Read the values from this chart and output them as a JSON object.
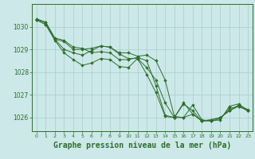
{
  "background_color": "#cce8e8",
  "grid_color": "#aacccc",
  "line_color": "#2d6e2d",
  "marker_color": "#2d6e2d",
  "xlabel": "Graphe pression niveau de la mer (hPa)",
  "xlabel_fontsize": 7,
  "ylabel_ticks": [
    1026,
    1027,
    1028,
    1029,
    1030
  ],
  "xtick_labels": [
    "0",
    "1",
    "2",
    "3",
    "4",
    "5",
    "6",
    "7",
    "8",
    "9",
    "10",
    "11",
    "12",
    "13",
    "14",
    "15",
    "16",
    "17",
    "18",
    "19",
    "20",
    "21",
    "22",
    "23"
  ],
  "ylim": [
    1025.4,
    1031.0
  ],
  "xlim": [
    -0.5,
    23.5
  ],
  "series": [
    [
      1030.3,
      1030.2,
      1029.45,
      1029.0,
      1028.85,
      1028.75,
      1028.95,
      1029.15,
      1029.1,
      1028.85,
      1028.85,
      1028.7,
      1028.75,
      1028.5,
      1027.65,
      1026.05,
      1026.0,
      1026.55,
      1025.9,
      1025.85,
      1025.9,
      1026.5,
      1026.6,
      1026.3
    ],
    [
      1030.3,
      1030.1,
      1029.45,
      1029.35,
      1029.0,
      1029.0,
      1029.05,
      1029.15,
      1029.1,
      1028.8,
      1028.6,
      1028.6,
      1028.2,
      1027.65,
      1026.65,
      1026.0,
      1026.0,
      1026.15,
      1025.85,
      1025.85,
      1025.95,
      1026.4,
      1026.5,
      1026.3
    ],
    [
      1030.35,
      1030.2,
      1029.5,
      1029.4,
      1029.1,
      1029.05,
      1028.85,
      1028.9,
      1028.85,
      1028.55,
      1028.55,
      1028.65,
      1028.5,
      1027.4,
      1026.1,
      1026.0,
      1026.6,
      1026.3,
      1025.85,
      1025.9,
      1026.0,
      1026.3,
      1026.5,
      1026.3
    ],
    [
      1030.3,
      1030.1,
      1029.4,
      1028.85,
      1028.55,
      1028.3,
      1028.4,
      1028.6,
      1028.55,
      1028.25,
      1028.2,
      1028.6,
      1027.9,
      1027.1,
      1026.05,
      1026.0,
      1026.65,
      1026.15,
      1025.85,
      1025.9,
      1026.0,
      1026.3,
      1026.55,
      1026.35
    ]
  ]
}
